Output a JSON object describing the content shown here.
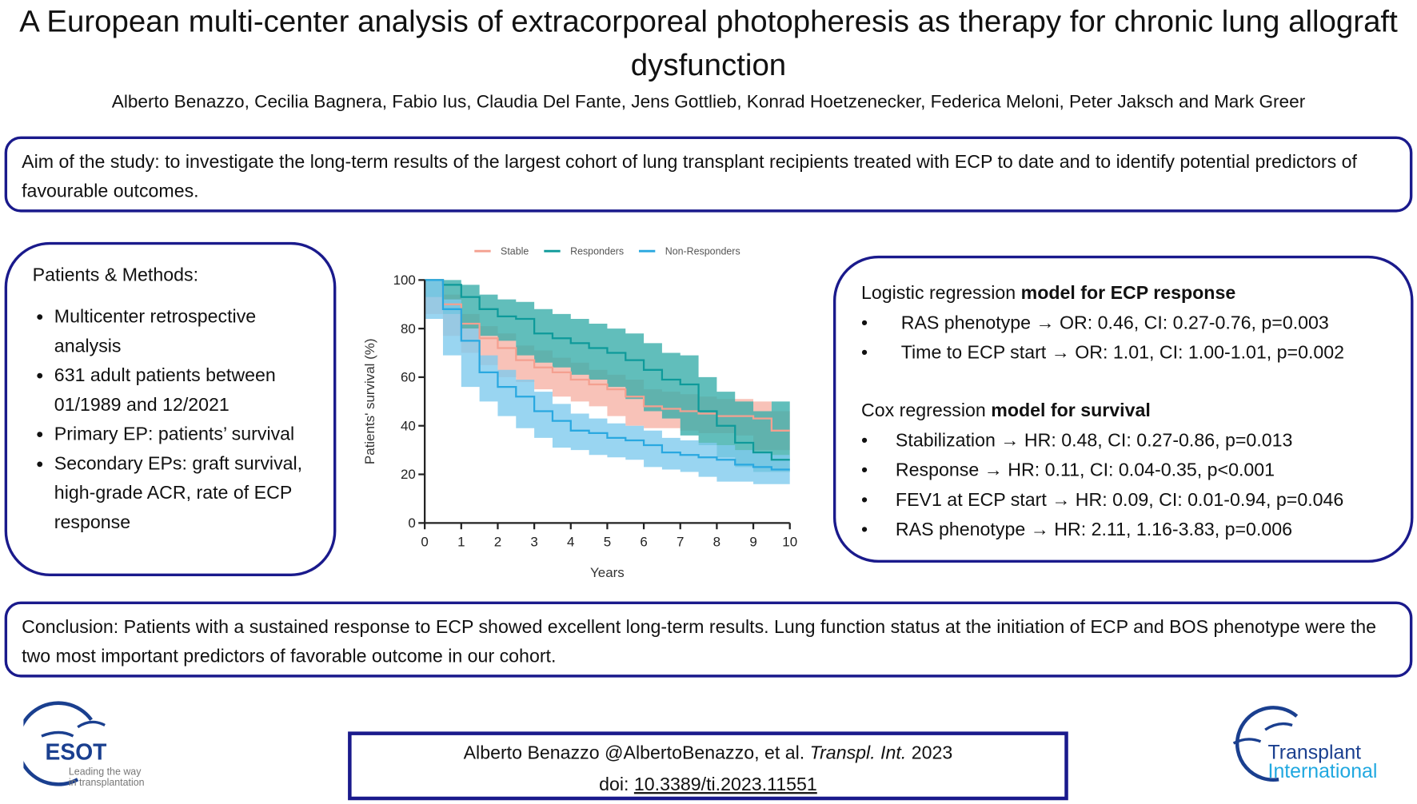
{
  "title": "A European multi-center analysis of extracorporeal photopheresis as therapy for chronic lung allograft dysfunction",
  "authors": "Alberto Benazzo, Cecilia Bagnera, Fabio Ius, Claudia Del Fante, Jens Gottlieb, Konrad Hoetzenecker, Federica Meloni, Peter Jaksch and Mark Greer",
  "aim": "Aim of the study: to investigate the long-term results of the largest cohort of lung transplant recipients treated with ECP to date and to identify potential predictors of favourable outcomes.",
  "methods": {
    "heading": "Patients & Methods:",
    "items": [
      "Multicenter retrospective analysis",
      "631 adult patients between 01/1989 and 12/2021",
      "Primary EP: patients’ survival",
      "Secondary EPs: graft survival, high-grade ACR, rate of ECP response"
    ]
  },
  "results": {
    "logistic": {
      "heading_plain": "Logistic regression ",
      "heading_bold": "model for ECP response",
      "items": [
        "RAS phenotype → OR: 0.46, CI: 0.27-0.76, p=0.003",
        "Time to ECP start → OR: 1.01, CI: 1.00-1.01, p=0.002"
      ]
    },
    "cox": {
      "heading_plain": "Cox regression ",
      "heading_bold": "model for survival",
      "items": [
        "Stabilization → HR: 0.48, CI: 0.27-0.86, p=0.013",
        "Response → HR: 0.11, CI: 0.04-0.35, p<0.001",
        "FEV1 at ECP start → HR: 0.09, CI: 0.01-0.94, p=0.046",
        "RAS phenotype → HR: 2.11, 1.16-3.83, p=0.006"
      ]
    }
  },
  "conclusion": "Conclusion: Patients with a sustained response to ECP showed excellent long-term results. Lung function status at the initiation of ECP and BOS phenotype were the two most important predictors of favorable outcome in our cohort.",
  "citation": {
    "line1_plain": "Alberto Benazzo @AlbertoBenazzo, et al. ",
    "line1_italic": "Transpl. Int.",
    "line1_year": " 2023",
    "doi_label": "doi: ",
    "doi": "10.3389/ti.2023.11551"
  },
  "logos": {
    "esot": {
      "name": "ESOT",
      "tagline1": "Leading the way",
      "tagline2": "in transplantation"
    },
    "ti": {
      "line1": "Transplant",
      "line2": "International"
    }
  },
  "chart_data": {
    "type": "line",
    "title": "",
    "xlabel": "Years",
    "ylabel": "Patients' survival (%)",
    "xlim": [
      0,
      10
    ],
    "ylim": [
      0,
      100
    ],
    "xticks": [
      0,
      1,
      2,
      3,
      4,
      5,
      6,
      7,
      8,
      9,
      10
    ],
    "yticks": [
      0,
      20,
      40,
      60,
      80,
      100
    ],
    "legend_position": "top",
    "x": [
      0,
      0.5,
      1,
      1.5,
      2,
      2.5,
      3,
      3.5,
      4,
      4.5,
      5,
      5.5,
      6,
      6.5,
      7,
      7.5,
      8,
      8.5,
      9,
      9.5,
      10
    ],
    "series": [
      {
        "name": "Stable",
        "color": "#f4a090",
        "band": "#f6b3a6",
        "values": [
          100,
          90,
          82,
          76,
          72,
          67,
          64,
          62,
          59,
          57,
          55,
          52,
          48,
          47,
          46,
          45,
          44,
          44,
          43,
          38,
          38
        ],
        "lower": [
          100,
          86,
          77,
          70,
          65,
          60,
          58,
          55,
          52,
          50,
          48,
          44,
          40,
          39,
          39,
          38,
          37,
          37,
          36,
          30,
          30
        ],
        "upper": [
          100,
          94,
          86,
          81,
          78,
          73,
          71,
          68,
          66,
          63,
          61,
          59,
          55,
          54,
          53,
          52,
          51,
          51,
          50,
          46,
          46
        ]
      },
      {
        "name": "Responders",
        "color": "#0e9a9a",
        "band": "#3aaeaa",
        "values": [
          100,
          98,
          93,
          88,
          85,
          84,
          78,
          76,
          74,
          72,
          70,
          67,
          63,
          59,
          57,
          46,
          40,
          33,
          29,
          26,
          26
        ],
        "lower": [
          100,
          93,
          86,
          80,
          77,
          75,
          69,
          66,
          64,
          61,
          59,
          56,
          51,
          46,
          43,
          36,
          32,
          27,
          23,
          21,
          21
        ],
        "upper": [
          100,
          100,
          98,
          94,
          92,
          91,
          88,
          86,
          84,
          82,
          80,
          78,
          74,
          70,
          69,
          60,
          54,
          50,
          46,
          50,
          50
        ],
        "_note_upper_end": "band approx"
      },
      {
        "name": "Non-Responders",
        "color": "#29a8e0",
        "band": "#7fcbed",
        "values": [
          100,
          88,
          75,
          62,
          56,
          52,
          46,
          42,
          38,
          37,
          35,
          34,
          32,
          29,
          28,
          27,
          26,
          24,
          23,
          22,
          22
        ],
        "lower": [
          100,
          84,
          69,
          56,
          50,
          44,
          39,
          35,
          31,
          30,
          28,
          27,
          26,
          23,
          22,
          21,
          19,
          17,
          17,
          16,
          16
        ],
        "upper": [
          100,
          92,
          80,
          69,
          63,
          59,
          54,
          49,
          45,
          43,
          41,
          40,
          38,
          35,
          34,
          33,
          32,
          30,
          29,
          28,
          28
        ]
      }
    ]
  }
}
